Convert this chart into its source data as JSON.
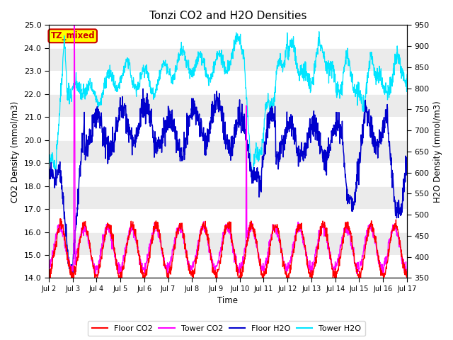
{
  "title": "Tonzi CO2 and H2O Densities",
  "xlabel": "Time",
  "ylabel_left": "CO2 Density (mmol/m3)",
  "ylabel_right": "H2O Density (mmol/m3)",
  "ylim_left": [
    14.0,
    25.0
  ],
  "ylim_right": [
    350,
    950
  ],
  "yticks_left": [
    14.0,
    15.0,
    16.0,
    17.0,
    18.0,
    19.0,
    20.0,
    21.0,
    22.0,
    23.0,
    24.0,
    25.0
  ],
  "yticks_right": [
    350,
    400,
    450,
    500,
    550,
    600,
    650,
    700,
    750,
    800,
    850,
    900,
    950
  ],
  "xtick_labels": [
    "Jul 2",
    "Jul 3",
    "Jul 4",
    "Jul 5",
    "Jul 6",
    "Jul 7",
    "Jul 8",
    "Jul 9",
    "Jul 10",
    "Jul 11",
    "Jul 12",
    "Jul 13",
    "Jul 14",
    "Jul 15",
    "Jul 16",
    "Jul 17"
  ],
  "annotation_text": "TZ_mixed",
  "annotation_facecolor": "#ffff00",
  "annotation_edgecolor": "#cc0000",
  "annotation_textcolor": "#cc0000",
  "colors": {
    "floor_co2": "#ff0000",
    "tower_co2": "#ff00ff",
    "floor_h2o": "#0000cc",
    "tower_h2o": "#00e5ff"
  },
  "legend_labels": [
    "Floor CO2",
    "Tower CO2",
    "Floor H2O",
    "Tower H2O"
  ],
  "fig_facecolor": "#ffffff",
  "plot_bg_color": "#d8d8d8",
  "band_color": "#ebebeb",
  "grid_color": "#ffffff"
}
